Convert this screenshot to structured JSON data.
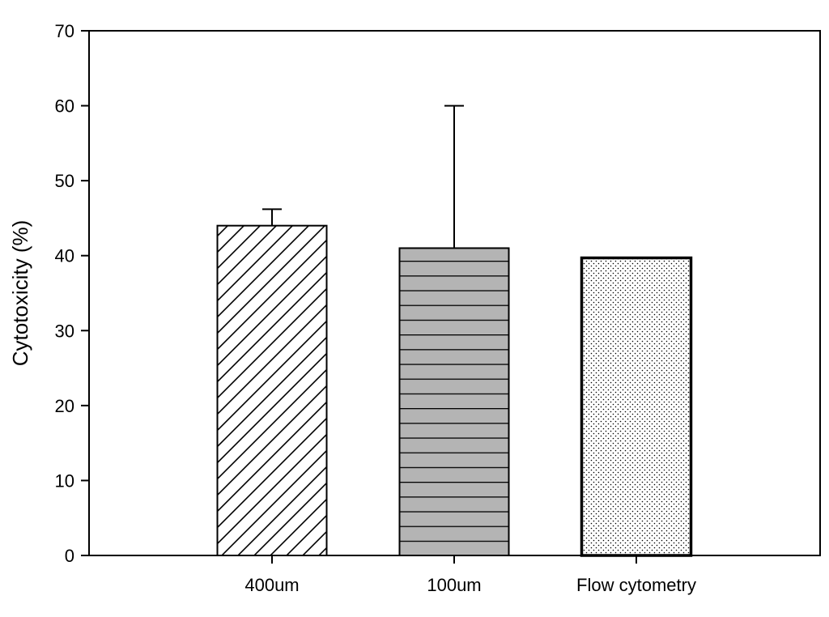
{
  "chart_data": {
    "type": "bar",
    "title": "",
    "xlabel": "",
    "ylabel": "Cytotoxicity (%)",
    "ylim": [
      0,
      70
    ],
    "yticks": [
      0,
      10,
      20,
      30,
      40,
      50,
      60,
      70
    ],
    "categories": [
      "400um",
      "100um",
      "Flow cytometry"
    ],
    "values": [
      44,
      41,
      39.7
    ],
    "error_upper": [
      2.2,
      19,
      0
    ],
    "patterns": [
      "diagonal-hatch",
      "horizontal-lines-gray",
      "dots"
    ],
    "colors": {
      "axis": "#000000",
      "bar_fill_gray": "#b4b4b4",
      "background": "#ffffff"
    },
    "grid": false,
    "legend": "none"
  }
}
